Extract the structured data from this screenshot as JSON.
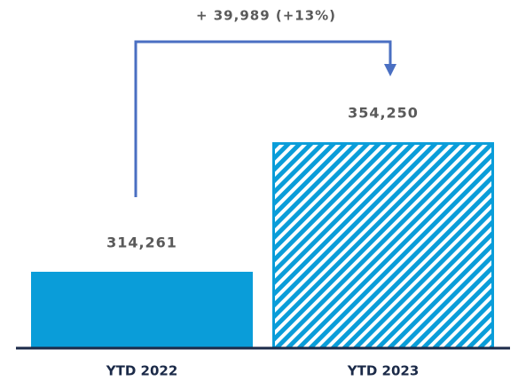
{
  "chart_data": {
    "type": "bar",
    "categories": [
      "YTD 2022",
      "YTD 2023"
    ],
    "values": [
      314261,
      354250
    ],
    "value_labels": [
      "314,261",
      "354,250"
    ],
    "colors": [
      "#0a9dd9",
      "#0a9dd9"
    ],
    "patterns": [
      "solid",
      "hatch"
    ],
    "annotation": "+ 39,989 (+13%)",
    "annotation_color": "#4a6fc2",
    "ylim": [
      290700,
      389900
    ]
  }
}
